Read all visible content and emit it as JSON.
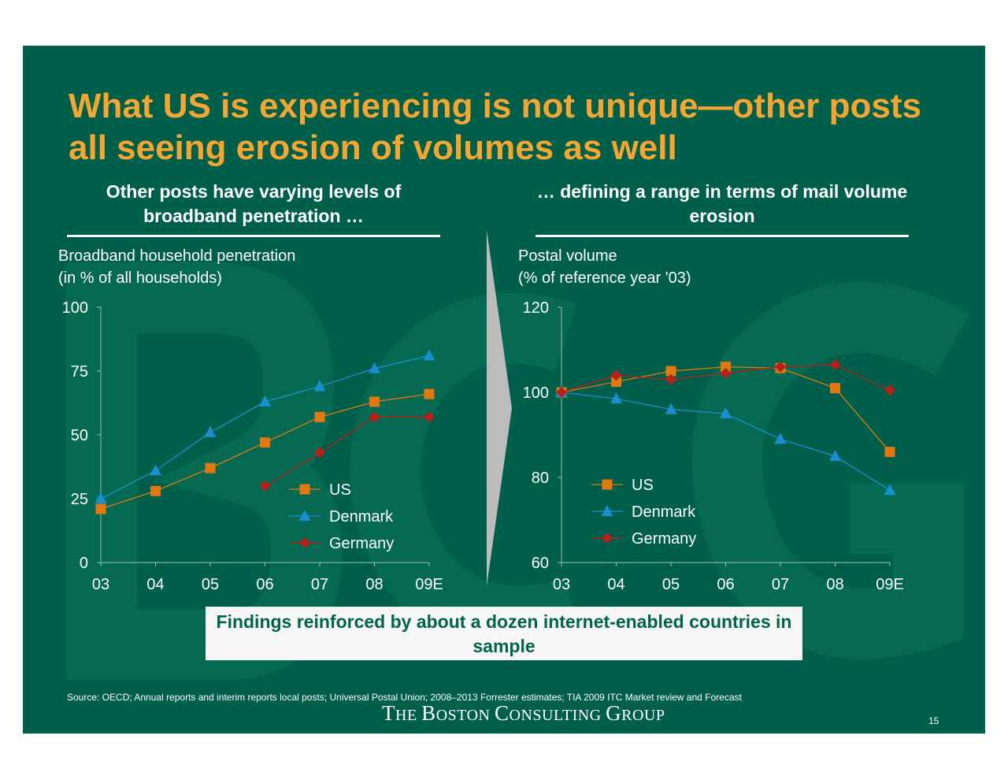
{
  "slide": {
    "title": "What US is experiencing is not unique—other posts all seeing erosion of volumes as well",
    "left_subhead": "Other posts have varying levels of broadband penetration …",
    "right_subhead": "… defining a range in terms of mail volume erosion",
    "findings": "Findings reinforced by about a dozen internet-enabled countries in sample",
    "source": "Source: OECD; Annual reports and interim reports local posts; Universal Postal Union; 2008–2013 Forrester estimates; TIA 2009 ITC Market review and Forecast",
    "logo": {
      "t1": "T",
      "t2": "HE ",
      "b1": "B",
      "b2": "OSTON ",
      "c1": "C",
      "c2": "ONSULTING ",
      "g1": "G",
      "g2": "ROUP"
    },
    "page_number": "15",
    "colors": {
      "background": "#005f4a",
      "title": "#f4a532",
      "us": "#e07a10",
      "denmark": "#1a8fd0",
      "germany": "#b8201a",
      "findings_text": "#00634c"
    }
  },
  "chart_data": [
    {
      "type": "line",
      "ylabel_line1": "Broadband household penetration",
      "ylabel_line2": "(in % of all households)",
      "categories": [
        "03",
        "04",
        "05",
        "06",
        "07",
        "08",
        "09E"
      ],
      "ylim": [
        0,
        100
      ],
      "yticks": [
        0,
        25,
        50,
        75,
        100
      ],
      "yticklabels": [
        "0",
        "25",
        "50",
        "75",
        "100"
      ],
      "legend_position": "bottom-center",
      "series": [
        {
          "name": "US",
          "marker": "square",
          "values": [
            21,
            28,
            37,
            47,
            57,
            63,
            66
          ]
        },
        {
          "name": "Denmark",
          "marker": "triangle",
          "values": [
            25,
            36,
            51,
            63,
            69,
            76,
            81
          ]
        },
        {
          "name": "Germany",
          "marker": "diamond",
          "values": [
            null,
            null,
            null,
            30,
            43,
            57,
            57
          ]
        }
      ]
    },
    {
      "type": "line",
      "ylabel_line1": "Postal volume",
      "ylabel_line2": "(% of reference year '03)",
      "categories": [
        "03",
        "04",
        "05",
        "06",
        "07",
        "08",
        "09E"
      ],
      "ylim": [
        60,
        120
      ],
      "yticks": [
        60,
        80,
        100,
        120
      ],
      "yticklabels": [
        "60",
        "80",
        "100",
        "120"
      ],
      "legend_position": "bottom-left",
      "series": [
        {
          "name": "US",
          "marker": "square",
          "values": [
            100,
            102.5,
            105,
            106,
            105.7,
            101,
            86
          ]
        },
        {
          "name": "Denmark",
          "marker": "triangle",
          "values": [
            100,
            98.5,
            96,
            95,
            89,
            85,
            77
          ]
        },
        {
          "name": "Germany",
          "marker": "diamond",
          "values": [
            100,
            104,
            103,
            104.5,
            106,
            106.5,
            100.5
          ]
        }
      ]
    }
  ]
}
